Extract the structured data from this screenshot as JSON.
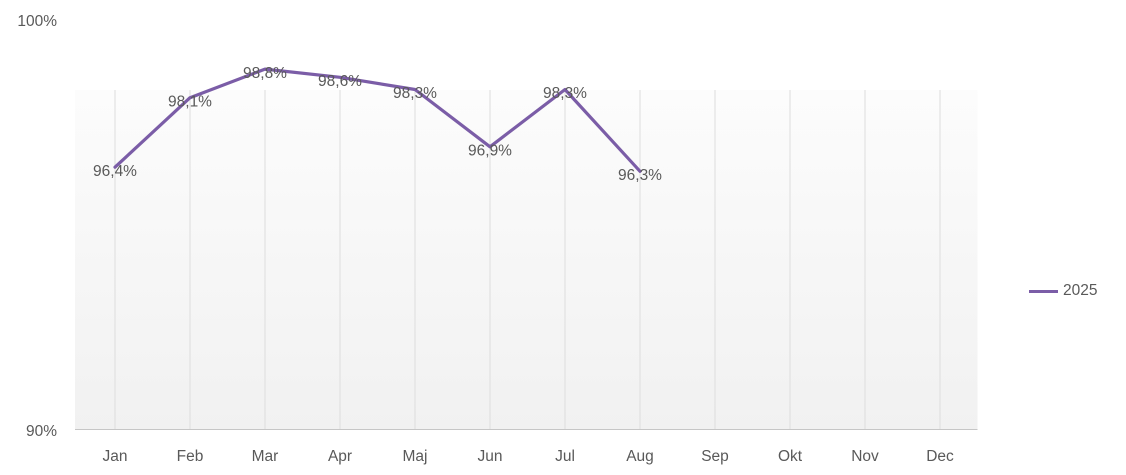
{
  "chart_data": {
    "type": "line",
    "title": "",
    "categories": [
      "Jan",
      "Feb",
      "Mar",
      "Apr",
      "Maj",
      "Jun",
      "Jul",
      "Aug",
      "Sep",
      "Okt",
      "Nov",
      "Dec"
    ],
    "series": [
      {
        "name": "2025",
        "color": "#7B5DA7",
        "values": [
          96.4,
          98.1,
          98.8,
          98.6,
          98.3,
          96.9,
          98.3,
          96.3,
          null,
          null,
          null,
          null
        ],
        "data_labels": [
          "96,4%",
          "98,1%",
          "98,8%",
          "98,6%",
          "98,3%",
          "96,9%",
          "98,3%",
          "96,3%"
        ]
      }
    ],
    "y_axis": {
      "min": 90,
      "max": 100,
      "min_label": "90%",
      "max_label": "100%"
    },
    "legend": {
      "position": "right",
      "entries": [
        {
          "label": "2025",
          "color": "#7B5DA7"
        }
      ]
    },
    "grid": {
      "vertical": true,
      "horizontal": false
    },
    "colors": {
      "line": "#7B5DA7",
      "gridline": "#DDDDDD",
      "axis_line": "#C6C6C6",
      "label_text": "#595959",
      "plot_band_top": "#FCFCFC",
      "plot_band_bottom": "#F1F1F1",
      "background": "#FFFFFF"
    }
  }
}
